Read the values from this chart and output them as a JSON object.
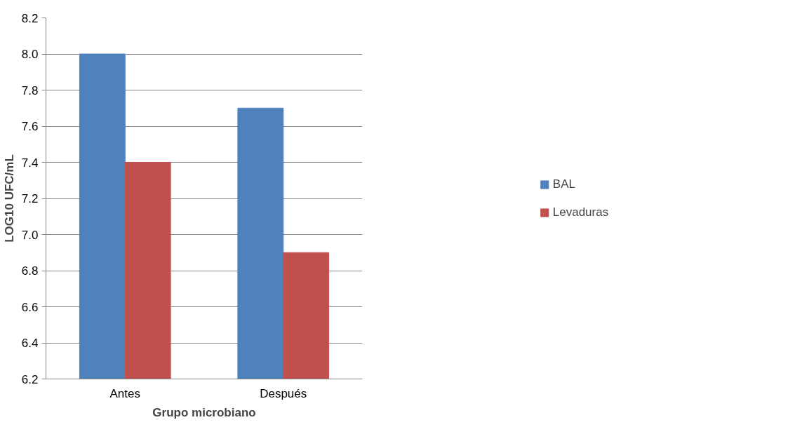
{
  "chart_data": {
    "type": "bar",
    "xlabel": "Grupo microbiano",
    "ylabel": "LOG10 UFC/mL",
    "categories": [
      "Antes",
      "Después"
    ],
    "series": [
      {
        "name": "BAL",
        "color": "#4f81bd",
        "values": [
          8.0,
          7.7
        ]
      },
      {
        "name": "Levaduras",
        "color": "#c0504d",
        "values": [
          7.4,
          6.9
        ]
      }
    ],
    "ylim": [
      6.2,
      8.2
    ],
    "yticks": [
      6.2,
      6.4,
      6.6,
      6.8,
      {
        "value": 7.0,
        "label": "7.0"
      },
      7.2,
      7.4,
      7.6,
      7.8,
      {
        "value": 8.0,
        "label": "8.0"
      },
      8.2
    ],
    "grid": "y",
    "legend": "right"
  }
}
